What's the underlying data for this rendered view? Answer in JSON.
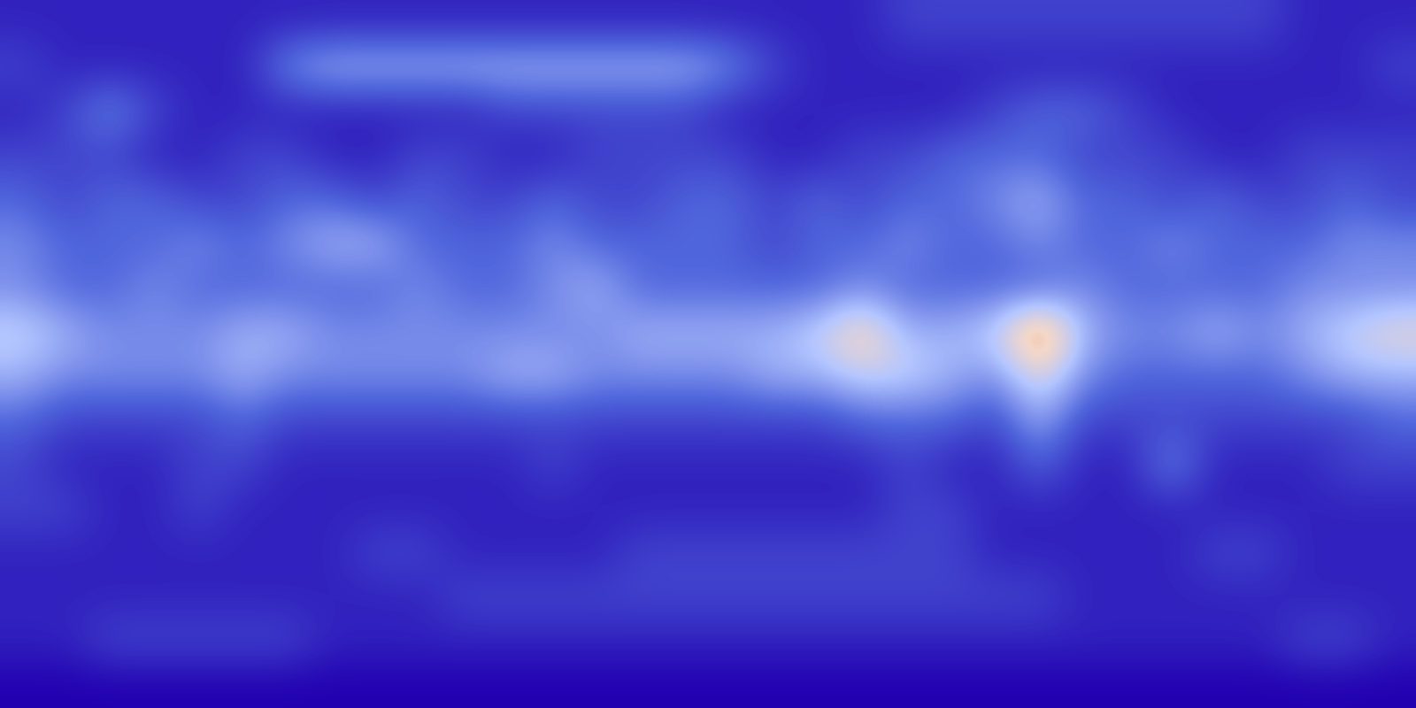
{
  "chart_data": {
    "type": "heatmap",
    "tick_labels": false,
    "zlim": [
      0,
      10
    ],
    "cells": [
      [
        1,
        1,
        1,
        1,
        1,
        1,
        1,
        1,
        1,
        1,
        1,
        1,
        1,
        1,
        1,
        1,
        1,
        1,
        1,
        1,
        2,
        2,
        2,
        2,
        2,
        2,
        2,
        2,
        2,
        1,
        1,
        1
      ],
      [
        2,
        1,
        1,
        1,
        1,
        1,
        4,
        5,
        5,
        5,
        5,
        5,
        5,
        5,
        5,
        5,
        4,
        2,
        1,
        1,
        1,
        1,
        1,
        1,
        1,
        1,
        1,
        1,
        1,
        1,
        1,
        2
      ],
      [
        1,
        2,
        4,
        2,
        1,
        1,
        1,
        1,
        1,
        1,
        1,
        2,
        2,
        2,
        2,
        2,
        1,
        1,
        1,
        1,
        1,
        1,
        2,
        3,
        3,
        2,
        1,
        1,
        1,
        1,
        1,
        1
      ],
      [
        2,
        2,
        2,
        1,
        1,
        2,
        2,
        1,
        1,
        2,
        2,
        1,
        1,
        2,
        2,
        2,
        2,
        1,
        1,
        2,
        2,
        3,
        3,
        3,
        2,
        2,
        2,
        1,
        1,
        2,
        2,
        2
      ],
      [
        3,
        2,
        3,
        3,
        2,
        2,
        3,
        3,
        2,
        3,
        2,
        2,
        3,
        2,
        2,
        3,
        3,
        2,
        3,
        2,
        3,
        3,
        4,
        5,
        3,
        3,
        2,
        3,
        2,
        2,
        3,
        2
      ],
      [
        4,
        3,
        3,
        3,
        4,
        3,
        4,
        5,
        5,
        3,
        3,
        3,
        4,
        3,
        3,
        3,
        3,
        2,
        3,
        3,
        4,
        3,
        3,
        4,
        3,
        3,
        4,
        3,
        3,
        3,
        4,
        4
      ],
      [
        4,
        3,
        3,
        4,
        3,
        3,
        3,
        3,
        3,
        4,
        3,
        3,
        4,
        5,
        3,
        3,
        3,
        3,
        3,
        4,
        3,
        3,
        3,
        3,
        4,
        3,
        3,
        3,
        3,
        4,
        4,
        4
      ],
      [
        6,
        5,
        4,
        4,
        4,
        5,
        5,
        4,
        4,
        4,
        4,
        4,
        4,
        4,
        5,
        5,
        5,
        5,
        6,
        8,
        5,
        5,
        6,
        10,
        5,
        4,
        4,
        5,
        4,
        5,
        6,
        7
      ],
      [
        5,
        4,
        4,
        4,
        4,
        5,
        4,
        4,
        4,
        4,
        4,
        5,
        5,
        4,
        4,
        4,
        4,
        5,
        5,
        6,
        6,
        5,
        4,
        7,
        4,
        3,
        3,
        3,
        3,
        4,
        5,
        5
      ],
      [
        3,
        2,
        2,
        2,
        2,
        3,
        2,
        2,
        2,
        2,
        2,
        2,
        2,
        2,
        2,
        2,
        2,
        2,
        2,
        3,
        3,
        3,
        2,
        5,
        2,
        2,
        2,
        2,
        2,
        2,
        2,
        3
      ],
      [
        2,
        1,
        1,
        1,
        2,
        2,
        1,
        1,
        1,
        1,
        1,
        1,
        2,
        1,
        1,
        1,
        1,
        1,
        1,
        1,
        2,
        1,
        1,
        3,
        1,
        1,
        4,
        1,
        1,
        1,
        2,
        2
      ],
      [
        2,
        2,
        1,
        1,
        2,
        1,
        1,
        1,
        1,
        1,
        1,
        1,
        1,
        1,
        1,
        1,
        1,
        1,
        1,
        1,
        2,
        2,
        1,
        1,
        1,
        1,
        1,
        1,
        1,
        1,
        1,
        1
      ],
      [
        1,
        1,
        1,
        1,
        1,
        1,
        1,
        1,
        2,
        2,
        1,
        1,
        1,
        1,
        2,
        2,
        2,
        2,
        2,
        2,
        2,
        2,
        1,
        1,
        1,
        1,
        1,
        2,
        2,
        1,
        1,
        1
      ],
      [
        1,
        1,
        1,
        1,
        1,
        1,
        1,
        1,
        1,
        1,
        2,
        2,
        2,
        2,
        2,
        2,
        2,
        2,
        2,
        2,
        2,
        2,
        2,
        2,
        1,
        1,
        1,
        1,
        1,
        1,
        1,
        1
      ],
      [
        1,
        1,
        2,
        2,
        2,
        2,
        2,
        1,
        1,
        1,
        1,
        1,
        1,
        1,
        1,
        1,
        1,
        1,
        1,
        1,
        1,
        1,
        1,
        1,
        1,
        1,
        1,
        1,
        1,
        2,
        2,
        1
      ],
      [
        0,
        0,
        0,
        0,
        0,
        0,
        0,
        0,
        0,
        0,
        0,
        0,
        0,
        0,
        0,
        0,
        0,
        0,
        0,
        0,
        0,
        0,
        0,
        0,
        0,
        0,
        0,
        0,
        0,
        0,
        0,
        0
      ]
    ]
  }
}
